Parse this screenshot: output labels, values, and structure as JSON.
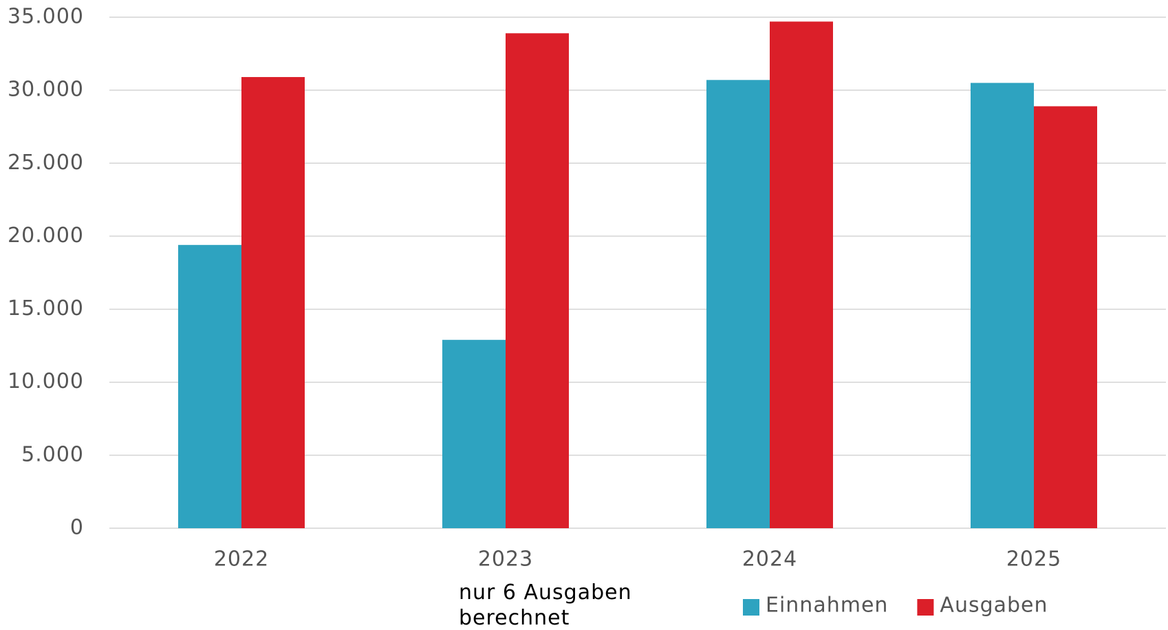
{
  "chart_data": {
    "type": "bar",
    "categories": [
      "2022",
      "2023",
      "2024",
      "2025"
    ],
    "series": [
      {
        "name": "Einnahmen",
        "color": "#2ea3c0",
        "values": [
          19400,
          12900,
          30700,
          30500
        ]
      },
      {
        "name": "Ausgaben",
        "color": "#db1f29",
        "values": [
          30900,
          33900,
          34700,
          28900
        ]
      }
    ],
    "ylim": [
      0,
      35000
    ],
    "yticks": [
      0,
      {
        "value": 5000,
        "label": "5.000"
      },
      {
        "value": 10000,
        "label": "10.000"
      },
      {
        "value": 15000,
        "label": "15.000"
      },
      {
        "value": 20000,
        "label": "20.000"
      },
      {
        "value": 25000,
        "label": "25.000"
      },
      {
        "value": 30000,
        "label": "30.000"
      },
      {
        "value": 35000,
        "label": "35.000"
      }
    ],
    "grid": true,
    "legend": "bottom",
    "annotation": "nur 6 Ausgaben berechnet"
  }
}
